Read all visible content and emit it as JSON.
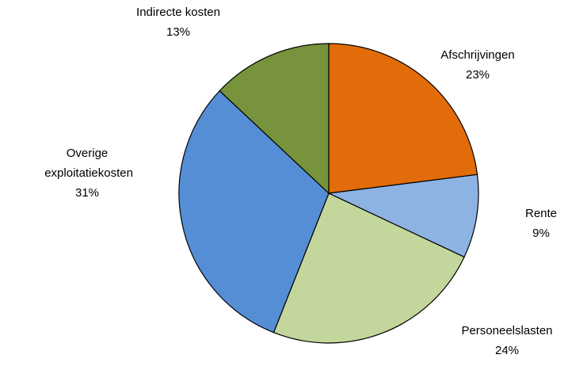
{
  "chart_data": {
    "type": "pie",
    "categories": [
      "Afschrijvingen",
      "Rente",
      "Personeelslasten",
      "Overige exploitatiekosten",
      "Indirecte kosten"
    ],
    "values": [
      23,
      9,
      24,
      31,
      13
    ],
    "value_labels": [
      "23%",
      "9%",
      "24%",
      "31%",
      "13%"
    ],
    "colors": [
      "#E36C0A",
      "#8DB3E2",
      "#C3D69B",
      "#558ED5",
      "#77933C"
    ]
  }
}
